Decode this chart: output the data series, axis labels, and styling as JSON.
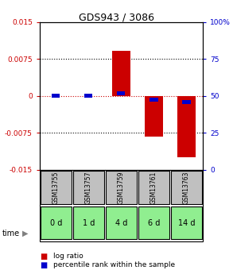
{
  "title": "GDS943 / 3086",
  "samples": [
    "GSM13755",
    "GSM13757",
    "GSM13759",
    "GSM13761",
    "GSM13763"
  ],
  "time_labels": [
    "0 d",
    "1 d",
    "4 d",
    "6 d",
    "14 d"
  ],
  "log_ratio": [
    0.0,
    0.0,
    0.0091,
    -0.0082,
    -0.0125
  ],
  "percentile_rank": [
    50,
    50,
    51.5,
    47.5,
    46.0
  ],
  "ylim_left": [
    -0.015,
    0.015
  ],
  "ylim_right": [
    0,
    100
  ],
  "yticks_left": [
    -0.015,
    -0.0075,
    0,
    0.0075,
    0.015
  ],
  "yticks_right": [
    0,
    25,
    50,
    75,
    100
  ],
  "ytick_labels_left": [
    "-0.015",
    "-0.0075",
    "0",
    "0.0075",
    "0.015"
  ],
  "ytick_labels_right": [
    "0",
    "25",
    "50",
    "75",
    "100%"
  ],
  "bar_width": 0.55,
  "blue_bar_width": 0.25,
  "red_color": "#cc0000",
  "blue_color": "#0000cc",
  "zero_line_color": "#cc0000",
  "sample_bg_color": "#c0c0c0",
  "time_bg_color": "#90ee90",
  "fig_bg_color": "#ffffff"
}
